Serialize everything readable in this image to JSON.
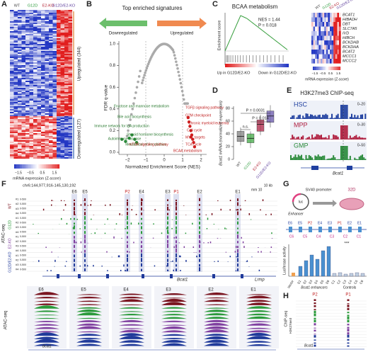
{
  "panel_a": {
    "letter": "A",
    "groups": [
      "WT",
      "G12D",
      "E2-KO",
      "G12D/E2-KO"
    ],
    "clusters": [
      "Upregulated (344)",
      "Downregulated (127)"
    ],
    "scale_ticks": [
      "−1.5",
      "−0.5",
      "0.5",
      "1.5"
    ],
    "scale_title": "mRNA expression (Z-score)"
  },
  "panel_b": {
    "letter": "B",
    "title": "Top enriched signatures",
    "down": "Downregulated",
    "up": "Upregulated",
    "x_label": "Normalized Enrichment Score (NES)",
    "y_label": "FDR q-value",
    "x_ticks": [
      "−2",
      "−1",
      "0",
      "1",
      "2"
    ],
    "y_ticks": [
      "0.0",
      "0.2",
      "0.4",
      "0.6",
      "0.8",
      "1.0"
    ],
    "green_labels": [
      "Fructose and mannose metabolism",
      "Bile acid biosynthesis",
      "Immune network for IgA production",
      "Autoimmune disease",
      "Steroid hormone biosynthesis",
      "Metabolism of xenobiotics"
    ],
    "red_labels": [
      "TGFβ signaling pathway",
      "G2M checkpoint",
      "Chronic myeloid leukemia",
      "Cell cycle",
      "MYC targets",
      "mTOR signaling pathway",
      "TCA cycle",
      "BCAA metabolism"
    ]
  },
  "panel_c": {
    "letter": "C",
    "title": "BCAA metabolism",
    "nes": "NES = 1.44",
    "p": "P = 0.018",
    "y_label": "Enrichment score",
    "up": "Up in G12D/E2-KO",
    "down": "Down in G12D/E2-KO",
    "groups": [
      "WT",
      "G12D",
      "E2-KO",
      "G12D/E2-KO"
    ],
    "genes": [
      "BCAT1",
      "HIBADH",
      "DBT",
      "SLC7A5",
      "IVD",
      "HIBCH",
      "BCKDHB",
      "BCKDHA",
      "BCAT2",
      "MCCC1",
      "MCCC2"
    ],
    "scale_ticks": [
      "−1.5",
      "−0.5",
      "0.5",
      "1.5"
    ],
    "scale_title": "mRNA expression (Z-score)"
  },
  "panel_d": {
    "letter": "D",
    "y_label": "Bcat1 mRNA (normalized expression)",
    "y_ticks": [
      "0",
      "20",
      "40",
      "60",
      "80"
    ],
    "groups": [
      "WT",
      "G12D",
      "E2-KO",
      "G12D/E2-KO"
    ],
    "p1": "P = 0.0031",
    "p2": "P = 0.014",
    "ns": "n.s."
  },
  "panel_e": {
    "letter": "E",
    "title": "H3K27me3 ChIP-seq",
    "tracks": [
      "HSC",
      "MPP",
      "GMP"
    ],
    "ranges": [
      "0–20",
      "0–30",
      "0–50"
    ],
    "gene": "Bcat1"
  },
  "panel_f": {
    "letter": "F",
    "locus": "chr6:144,977,916-145,130,192",
    "genome": "mm 10",
    "scale": "10 kb",
    "peaks": [
      "E6",
      "E5",
      "P2",
      "E4",
      "E3",
      "P1",
      "E2",
      "E1"
    ],
    "assay": "ATAC-seq",
    "groups": [
      "WT",
      "G12D",
      "E2-KO",
      "G12D/E2-KO"
    ],
    "reps": [
      "#1",
      "#2",
      "#3",
      "#4"
    ],
    "range": "0-500",
    "genes": [
      "Bcat1",
      "Lrmp"
    ],
    "zoom_peaks": [
      "E6",
      "E5",
      "E4",
      "E3",
      "E2",
      "E1"
    ]
  },
  "panel_g": {
    "letter": "G",
    "promoter": "SV40 promoter",
    "luc": "luc",
    "enhancer": "Enhancer",
    "cell": "32D",
    "elements": [
      "E6",
      "E5",
      "P2",
      "E4",
      "E3",
      "P1",
      "E2",
      "E1"
    ],
    "controls": [
      "C6",
      "C5",
      "C4",
      "C3",
      "C2",
      "C1"
    ],
    "y_label": "Luciferase activity",
    "vector": "Vector",
    "enh_group": "Bcat1 enhancers",
    "ctrl_group": "Controls",
    "sig": "***",
    "bar_labels": [
      "E1",
      "E2",
      "E3",
      "E4",
      "E5",
      "E6",
      "C1",
      "C2",
      "C3",
      "C4",
      "C5",
      "C6"
    ]
  },
  "panel_h": {
    "letter": "H",
    "peaks": [
      "P2",
      "P1"
    ],
    "assay": "ChIP-seq",
    "mark": "H3K27me3",
    "gene": "Bcat1"
  }
}
